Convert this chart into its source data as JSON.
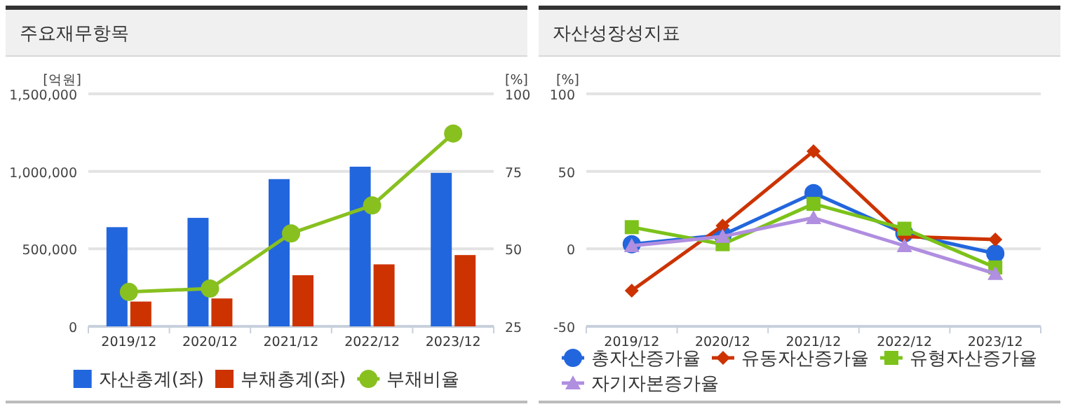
{
  "chart_data": [
    {
      "type": "bar",
      "title": "주요재무항목",
      "ylabel": "[억원]",
      "y2label": "[%]",
      "categories": [
        "2019/12",
        "2020/12",
        "2021/12",
        "2022/12",
        "2023/12"
      ],
      "series": [
        {
          "name": "자산총계(좌)",
          "color": "#2266dd",
          "values": [
            640000,
            700000,
            950000,
            1030000,
            990000
          ]
        },
        {
          "name": "부채총계(좌)",
          "color": "#cc3300",
          "values": [
            160000,
            180000,
            330000,
            400000,
            460000
          ]
        },
        {
          "name": "부채비율",
          "type": "line",
          "axis": "y2",
          "marker": "circle",
          "color": "#88c020",
          "values": [
            36.1,
            37.2,
            55.0,
            64.0,
            87.2
          ]
        }
      ],
      "ylim": [
        0,
        1500000
      ],
      "yticks": [
        0,
        {
          "value": 500000,
          "label": "500,000"
        },
        {
          "value": 1000000,
          "label": "1,000,000"
        },
        {
          "value": 1500000,
          "label": "1,500,000"
        }
      ],
      "y2lim": [
        25,
        100
      ],
      "y2ticks": [
        25,
        50,
        75,
        100
      ],
      "grid": "y",
      "legend": "bottom"
    },
    {
      "type": "line",
      "title": "자산성장성지표",
      "ylabel": "[%]",
      "categories": [
        "2019/12",
        "2020/12",
        "2021/12",
        "2022/12",
        "2023/12"
      ],
      "series": [
        {
          "name": "총자산증가율",
          "marker": "circle",
          "color": "#2266dd",
          "values": [
            3,
            9,
            36,
            10,
            -3
          ]
        },
        {
          "name": "유동자산증가율",
          "marker": "diamond",
          "color": "#cc3300",
          "values": [
            -27,
            15,
            63,
            8,
            6
          ]
        },
        {
          "name": "유형자산증가율",
          "marker": "square",
          "color": "#7cc21a",
          "values": [
            14,
            3,
            29,
            13,
            -12
          ]
        },
        {
          "name": "자기자본증가율",
          "marker": "triangle",
          "color": "#b08ee0",
          "values": [
            2,
            8,
            20,
            2,
            -16
          ]
        }
      ],
      "ylim": [
        -50,
        100
      ],
      "yticks": [
        -50,
        0,
        50,
        100
      ],
      "grid": "y",
      "legend": "bottom"
    }
  ]
}
